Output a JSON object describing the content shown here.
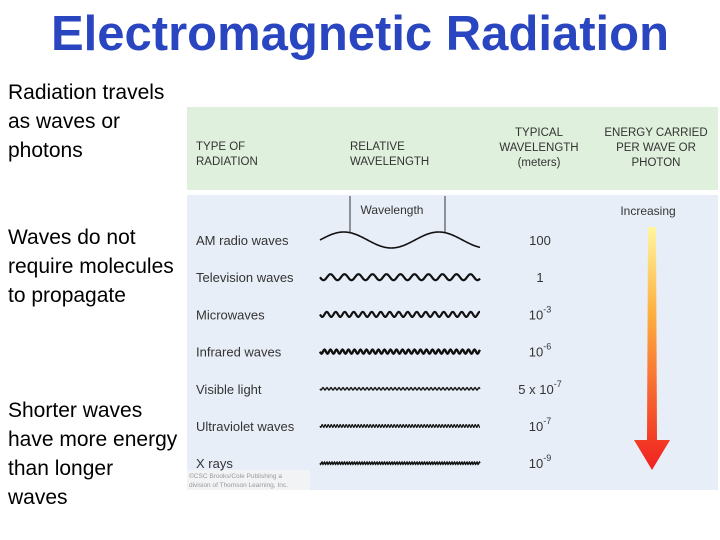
{
  "title": "Electromagnetic Radiation",
  "points": [
    "Radiation travels as waves or photons",
    "Waves do not require molecules to propagate",
    "Shorter waves have more energy than longer waves"
  ],
  "diagram": {
    "header": [
      [
        "TYPE OF",
        "RADIATION"
      ],
      [
        "RELATIVE",
        "WAVELENGTH"
      ],
      [
        "TYPICAL",
        "WAVELENGTH",
        "(meters)"
      ],
      [
        "ENERGY CARRIED",
        "PER WAVE OR",
        "PHOTON"
      ]
    ],
    "wavelength_label": "Wavelength",
    "energy_label": "Increasing",
    "rows": [
      {
        "name": "AM radio waves",
        "typical": {
          "base": "100"
        }
      },
      {
        "name": "Television waves",
        "typical": {
          "base": "1"
        }
      },
      {
        "name": "Microwaves",
        "typical": {
          "base": "10",
          "exponent": "-3"
        }
      },
      {
        "name": "Infrared waves",
        "typical": {
          "base": "10",
          "exponent": "-6"
        }
      },
      {
        "name": "Visible light",
        "typical": {
          "prefix": "5 x",
          "base": "10",
          "exponent": "-7"
        }
      },
      {
        "name": "Ultraviolet waves",
        "typical": {
          "base": "10",
          "exponent": "-7"
        }
      },
      {
        "name": "X rays",
        "typical": {
          "base": "10",
          "exponent": "-9"
        }
      }
    ],
    "credit": [
      "©CSC Brooks/Cole Publishing a",
      "division of Thomson Learning, Inc."
    ]
  }
}
